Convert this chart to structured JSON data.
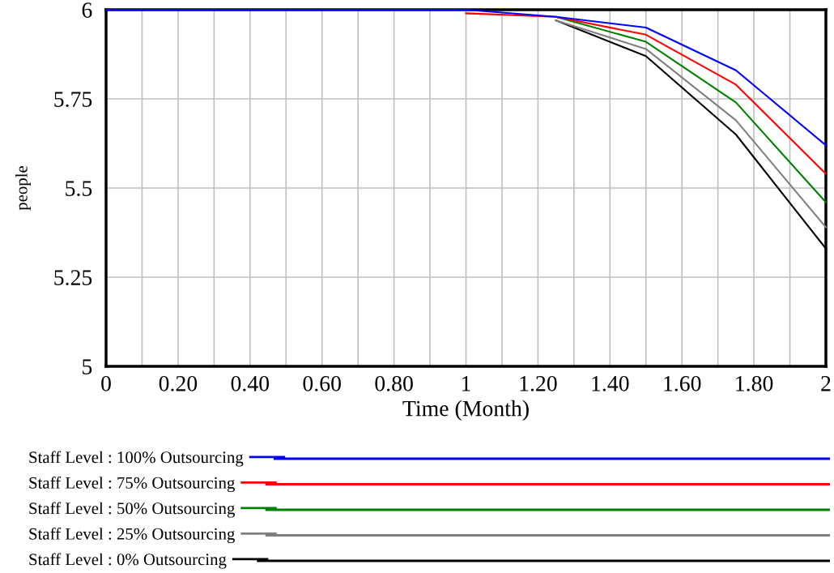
{
  "chart_data": {
    "type": "line",
    "xlabel": "Time (Month)",
    "ylabel": "people",
    "x": [
      0,
      0.25,
      0.5,
      0.75,
      1,
      1.25,
      1.5,
      1.75,
      2
    ],
    "series": [
      {
        "name": "Staff Level : 100% Outsourcing",
        "color": "#0000ff",
        "values": [
          6.0,
          6.0,
          6.0,
          6.0,
          6.0,
          5.98,
          5.95,
          5.83,
          5.62
        ]
      },
      {
        "name": "Staff Level : 75% Outsourcing",
        "color": "#ff0000",
        "values": [
          null,
          null,
          null,
          null,
          5.99,
          5.98,
          5.93,
          5.79,
          5.54
        ]
      },
      {
        "name": "Staff Level : 50% Outsourcing",
        "color": "#008000",
        "values": [
          null,
          null,
          null,
          null,
          null,
          5.98,
          5.91,
          5.74,
          5.46
        ]
      },
      {
        "name": "Staff Level : 25% Outsourcing",
        "color": "#808080",
        "values": [
          null,
          null,
          null,
          null,
          null,
          5.97,
          5.89,
          5.69,
          5.39
        ]
      },
      {
        "name": "Staff Level : 0% Outsourcing",
        "color": "#000000",
        "values": [
          null,
          null,
          null,
          null,
          null,
          5.97,
          5.87,
          5.65,
          5.33
        ]
      }
    ],
    "xlim": [
      0,
      2
    ],
    "ylim": [
      5,
      6
    ],
    "xticks": [
      0,
      {
        "value": 0.1,
        "label": null
      },
      {
        "value": 0.2,
        "label": "0.20"
      },
      {
        "value": 0.3,
        "label": null
      },
      {
        "value": 0.4,
        "label": "0.40"
      },
      {
        "value": 0.5,
        "label": null
      },
      {
        "value": 0.6,
        "label": "0.60"
      },
      {
        "value": 0.7,
        "label": null
      },
      {
        "value": 0.8,
        "label": "0.80"
      },
      {
        "value": 0.9,
        "label": null
      },
      1,
      {
        "value": 1.1,
        "label": null
      },
      {
        "value": 1.2,
        "label": "1.20"
      },
      {
        "value": 1.3,
        "label": null
      },
      {
        "value": 1.4,
        "label": "1.40"
      },
      {
        "value": 1.5,
        "label": null
      },
      {
        "value": 1.6,
        "label": "1.60"
      },
      {
        "value": 1.7,
        "label": null
      },
      {
        "value": 1.8,
        "label": "1.80"
      },
      {
        "value": 1.9,
        "label": null
      },
      2
    ],
    "yticks": [
      5,
      5.25,
      5.5,
      5.75,
      6
    ],
    "grid": true,
    "legend": "bottom",
    "marker": "none",
    "line_style": "solid"
  }
}
